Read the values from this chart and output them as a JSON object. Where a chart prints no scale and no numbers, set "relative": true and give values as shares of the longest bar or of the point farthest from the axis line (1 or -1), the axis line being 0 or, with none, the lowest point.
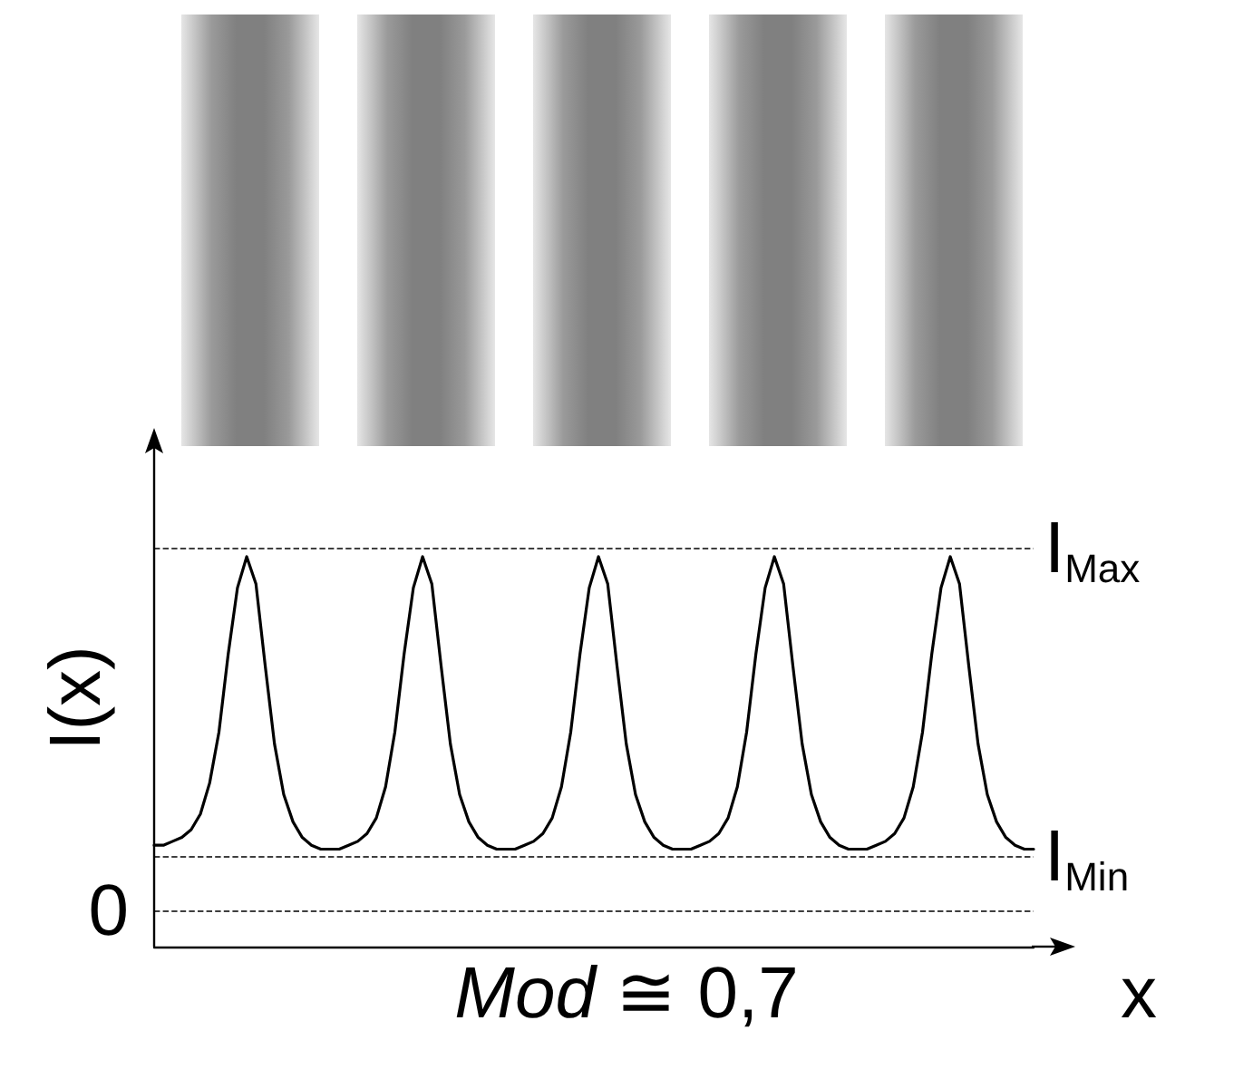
{
  "chart_data": {
    "type": "line",
    "relative": true,
    "xlabel": "x",
    "ylabel": "I(x)",
    "color": "#000000",
    "grid": false,
    "marker": "none",
    "line_style": "solid",
    "categories": [
      null,
      null,
      null,
      null,
      null,
      null,
      null,
      null,
      null,
      null,
      null,
      null,
      null,
      null,
      null,
      null,
      null,
      null,
      null,
      null,
      null,
      null,
      null,
      null,
      null,
      null,
      null,
      null,
      null,
      null,
      null,
      null,
      null,
      null,
      null,
      null,
      null,
      null,
      null,
      null,
      null,
      null,
      null,
      null,
      null,
      null,
      null,
      null,
      null,
      null,
      null,
      null,
      null,
      null,
      null,
      null,
      null,
      null,
      null,
      null,
      null,
      null,
      null,
      null,
      null,
      null,
      null,
      null,
      null,
      null,
      null,
      null,
      null,
      null,
      null,
      null,
      null,
      null,
      null,
      null,
      null,
      null,
      null,
      null,
      null,
      null,
      null,
      null,
      null,
      null,
      null,
      null,
      null,
      null,
      null,
      null
    ],
    "values": [
      0.26,
      0.26,
      0.27,
      0.28,
      0.3,
      0.34,
      0.42,
      0.55,
      0.75,
      0.92,
      1.0,
      0.93,
      0.72,
      0.52,
      0.39,
      0.32,
      0.28,
      0.26,
      0.25,
      0.25,
      0.25,
      0.26,
      0.27,
      0.29,
      0.33,
      0.41,
      0.55,
      0.75,
      0.92,
      1.0,
      0.93,
      0.72,
      0.52,
      0.39,
      0.32,
      0.28,
      0.26,
      0.25,
      0.25,
      0.25,
      0.26,
      0.27,
      0.29,
      0.33,
      0.41,
      0.55,
      0.75,
      0.92,
      1.0,
      0.93,
      0.72,
      0.52,
      0.39,
      0.32,
      0.28,
      0.26,
      0.25,
      0.25,
      0.25,
      0.26,
      0.27,
      0.29,
      0.33,
      0.41,
      0.55,
      0.75,
      0.92,
      1.0,
      0.93,
      0.72,
      0.52,
      0.39,
      0.32,
      0.28,
      0.26,
      0.25,
      0.25,
      0.25,
      0.26,
      0.27,
      0.29,
      0.33,
      0.41,
      0.55,
      0.75,
      0.92,
      1.0,
      0.93,
      0.72,
      0.52,
      0.39,
      0.32,
      0.28,
      0.26,
      0.25,
      0.25
    ],
    "ref_lines": [
      {
        "axis": "y",
        "value": 1.02,
        "label": "I$_{Max}$"
      },
      {
        "axis": "y",
        "value": 0.23,
        "label": "I$_{Min}$"
      },
      {
        "axis": "y",
        "value": 0.09,
        "label": "0"
      }
    ],
    "annotations": [
      "Mod ≅ 0,7"
    ]
  }
}
